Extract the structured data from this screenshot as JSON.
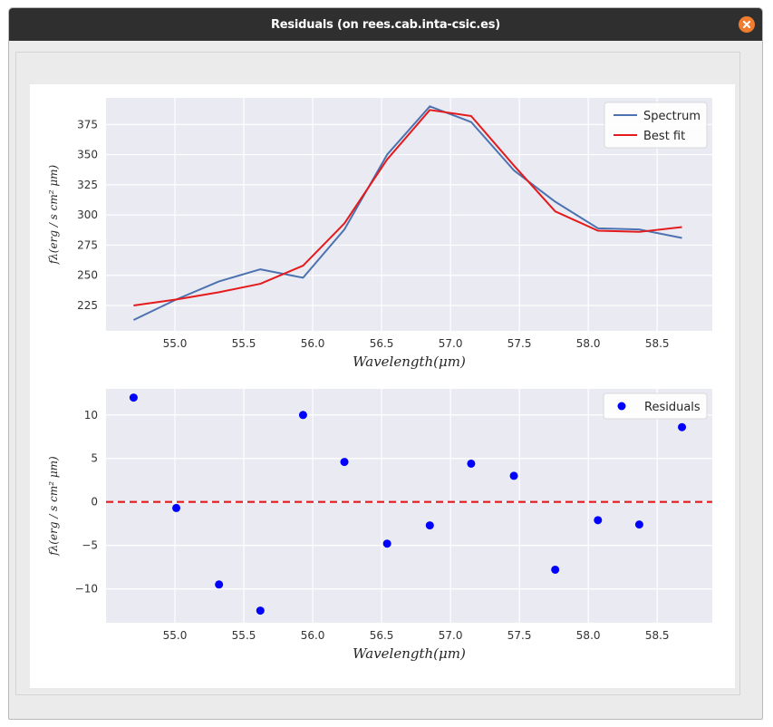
{
  "window": {
    "title": "Residuals (on rees.cab.inta-csic.es)",
    "close_icon": "close-icon",
    "accent": "#f07d2f"
  },
  "chart_data": [
    {
      "type": "line",
      "x": [
        54.7,
        55.01,
        55.32,
        55.62,
        55.93,
        56.23,
        56.54,
        56.85,
        57.15,
        57.46,
        57.76,
        58.07,
        58.37,
        58.68
      ],
      "series": [
        {
          "name": "Spectrum",
          "color": "#4c72b0",
          "values": [
            213,
            230,
            245,
            255,
            248,
            288,
            350,
            390,
            377,
            337,
            311,
            289,
            288,
            281
          ]
        },
        {
          "name": "Best fit",
          "color": "#e41a1c",
          "values": [
            225,
            230,
            236,
            243,
            258,
            293,
            346,
            387,
            382,
            341,
            303,
            287,
            286,
            290
          ]
        }
      ],
      "xlabel": "Wavelength(μm)",
      "ylabel": "fλ(erg / s cm² μm)",
      "xlim": [
        54.5,
        58.9
      ],
      "ylim": [
        204,
        397
      ],
      "xticks": [
        55.0,
        55.5,
        56.0,
        56.5,
        57.0,
        57.5,
        58.0,
        58.5
      ],
      "xtick_labels": [
        "55.0",
        "55.5",
        "56.0",
        "56.5",
        "57.0",
        "57.5",
        "58.0",
        "58.5"
      ],
      "yticks": [
        225,
        250,
        275,
        300,
        325,
        350,
        375
      ],
      "ytick_labels": [
        "225",
        "250",
        "275",
        "300",
        "325",
        "350",
        "375"
      ],
      "grid": true,
      "legend": "top-right"
    },
    {
      "type": "scatter",
      "x": [
        54.7,
        55.01,
        55.32,
        55.62,
        55.93,
        56.23,
        56.54,
        56.85,
        57.15,
        57.46,
        57.76,
        58.07,
        58.37,
        58.68
      ],
      "series": [
        {
          "name": "Residuals",
          "color": "#0000ff",
          "values": [
            12.0,
            -0.7,
            -9.5,
            -12.5,
            10.0,
            4.6,
            -4.8,
            -2.7,
            4.4,
            3.0,
            -7.8,
            -2.1,
            -2.6,
            8.6
          ]
        }
      ],
      "reference_line": {
        "y": 0,
        "color": "#e41a1c",
        "style": "dashed"
      },
      "xlabel": "Wavelength(μm)",
      "ylabel": "fλ(erg / s cm² μm)",
      "xlim": [
        54.5,
        58.9
      ],
      "ylim": [
        -13.9,
        13.0
      ],
      "xticks": [
        55.0,
        55.5,
        56.0,
        56.5,
        57.0,
        57.5,
        58.0,
        58.5
      ],
      "xtick_labels": [
        "55.0",
        "55.5",
        "56.0",
        "56.5",
        "57.0",
        "57.5",
        "58.0",
        "58.5"
      ],
      "yticks": [
        10,
        5,
        0,
        -5,
        -10
      ],
      "ytick_labels": [
        "10",
        "5",
        "0",
        "−5",
        "−10"
      ],
      "grid": true,
      "legend": "top-right"
    }
  ]
}
